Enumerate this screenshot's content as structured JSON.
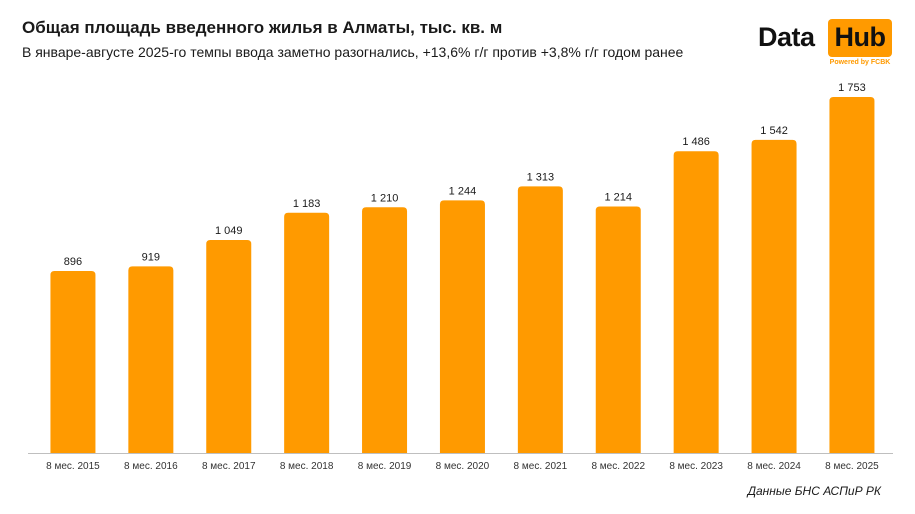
{
  "chart_data": {
    "type": "bar",
    "title": "Общая площадь введенного жилья в Алматы, тыс. кв. м",
    "subtitle": "В январе-августе 2025-го темпы ввода заметно разогнались, +13,6% г/г против +3,8% г/г годом ранее",
    "categories": [
      "8 мес. 2015",
      "8 мес. 2016",
      "8 мес. 2017",
      "8 мес. 2018",
      "8 мес. 2019",
      "8 мес. 2020",
      "8 мес. 2021",
      "8 мес. 2022",
      "8 мес. 2023",
      "8 мес. 2024",
      "8 мес. 2025"
    ],
    "values": [
      896,
      919,
      1049,
      1183,
      1210,
      1244,
      1313,
      1214,
      1486,
      1542,
      1753
    ],
    "value_labels": [
      "896",
      "919",
      "1 049",
      "1 183",
      "1 210",
      "1 244",
      "1 313",
      "1 214",
      "1 486",
      "1 542",
      "1 753"
    ],
    "ylim": [
      0,
      1753
    ],
    "grid": false,
    "bar_color": "#ff9a00"
  },
  "logo": {
    "word1": "Data",
    "word2": "Hub",
    "tagline": "Powered by FCBK"
  },
  "source": "Данные БНС АСПиР РК"
}
